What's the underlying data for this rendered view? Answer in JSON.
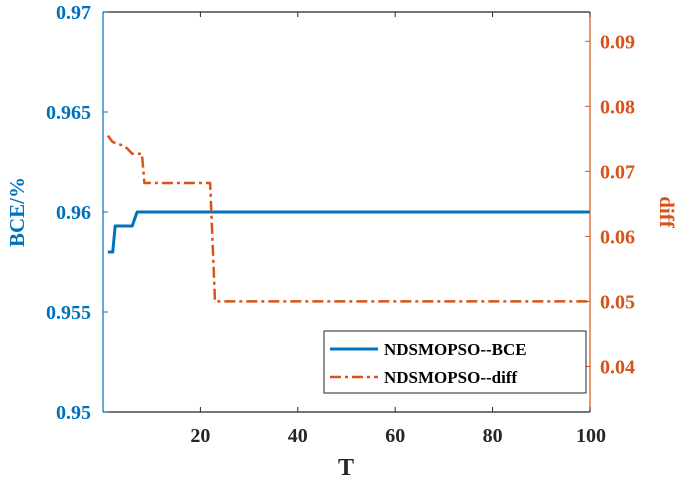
{
  "chart_data": {
    "type": "line",
    "xlabel": "T",
    "ylabel_left": "BCE/%",
    "ylabel_right": "diff",
    "xlim": [
      0,
      100
    ],
    "ylim_left": [
      0.95,
      0.97
    ],
    "ylim_right": [
      0.033,
      0.0945
    ],
    "xticks": [
      20,
      40,
      60,
      80,
      100
    ],
    "xtick_labels": [
      "20",
      "40",
      "60",
      "80",
      "100"
    ],
    "yticks_left": [
      0.95,
      0.955,
      0.96,
      0.965,
      0.97
    ],
    "ytick_labels_left": [
      "0.95",
      "0.955",
      "0.96",
      "0.965",
      "0.97"
    ],
    "yticks_right": [
      0.04,
      0.05,
      0.06,
      0.07,
      0.08,
      0.09
    ],
    "ytick_labels_right": [
      "0.04",
      "0.05",
      "0.06",
      "0.07",
      "0.08",
      "0.09"
    ],
    "legend_position": "bottom-right",
    "colors": {
      "left_axis": "#0072BD",
      "right_axis": "#D95319",
      "bce_line": "#0072BD",
      "diff_line": "#D95319"
    },
    "series": [
      {
        "name": "NDSMOPSO--BCE",
        "axis": "left",
        "style": "solid",
        "x": [
          1,
          2,
          2.5,
          5,
          6,
          7,
          7.5,
          100
        ],
        "y": [
          0.958,
          0.958,
          0.9593,
          0.9593,
          0.9593,
          0.96,
          0.96,
          0.96
        ]
      },
      {
        "name": "NDSMOPSO--diff",
        "axis": "right",
        "style": "dash-dot",
        "x": [
          1,
          2,
          4,
          5,
          6,
          7,
          7.5,
          8,
          8.5,
          9,
          21,
          22,
          23,
          24,
          100
        ],
        "y": [
          0.0755,
          0.0745,
          0.074,
          0.0735,
          0.0727,
          0.0727,
          0.0727,
          0.0727,
          0.0682,
          0.0682,
          0.0682,
          0.0682,
          0.05,
          0.05,
          0.05
        ]
      }
    ]
  }
}
